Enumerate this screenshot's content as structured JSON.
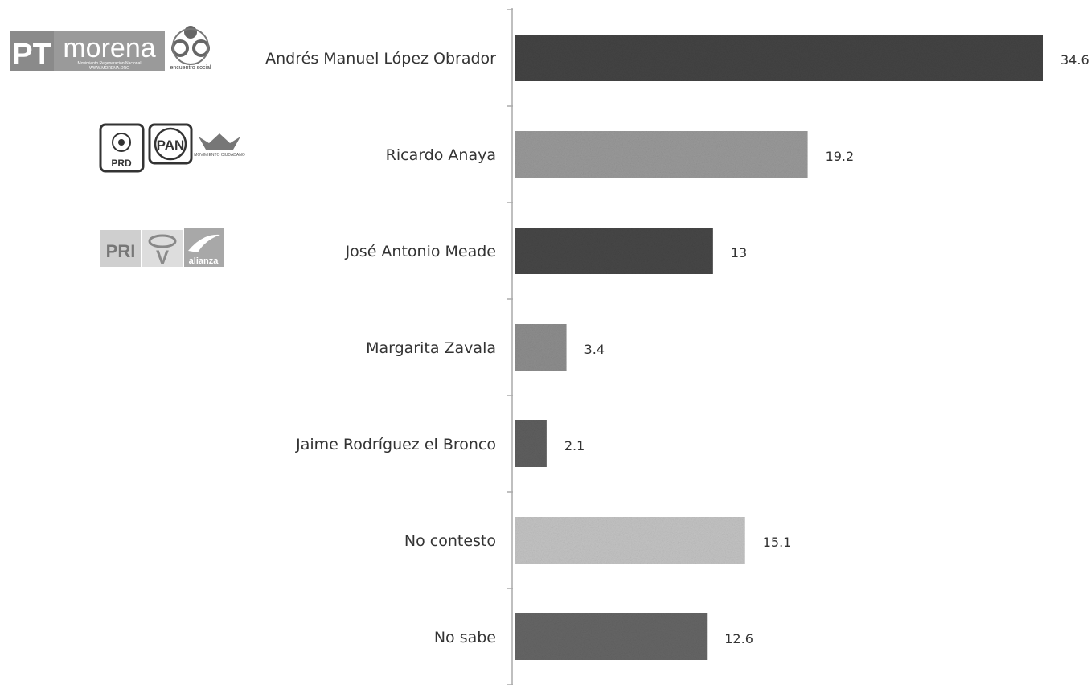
{
  "chart_data": {
    "type": "bar",
    "orientation": "horizontal",
    "categories": [
      "Andrés Manuel López Obrador",
      "Ricardo Anaya",
      "José Antonio Meade",
      "Margarita Zavala",
      "Jaime Rodríguez el Bronco",
      "No contesto",
      "No sabe"
    ],
    "values": [
      34.6,
      19.2,
      13,
      3.4,
      2.1,
      15.1,
      12.6
    ],
    "value_labels": [
      "34.6",
      "19.2",
      "13",
      "3.4",
      "2.1",
      "15.1",
      "12.6"
    ],
    "bar_colors": [
      "#444444",
      "#9a9a9a",
      "#474747",
      "#8e8e8e",
      "#5f5f5f",
      "#c4c4c4",
      "#666666"
    ],
    "xlim": [
      0,
      34.6
    ],
    "grid": false,
    "legend": "none"
  },
  "logos": {
    "row1": {
      "pt": "PT",
      "morena": "morena",
      "morena_sub": "Movimiento Regeneración Nacional",
      "morena_web": "WWW.MORENA.ORG",
      "encuentro": "encuentro social"
    },
    "row2": {
      "prd": "PRD",
      "pan": "PAN",
      "mc": "MOVIMIENTO CIUDADANO"
    },
    "row3": {
      "pri": "PRI",
      "verde": "V",
      "alianza": "alianza"
    }
  }
}
